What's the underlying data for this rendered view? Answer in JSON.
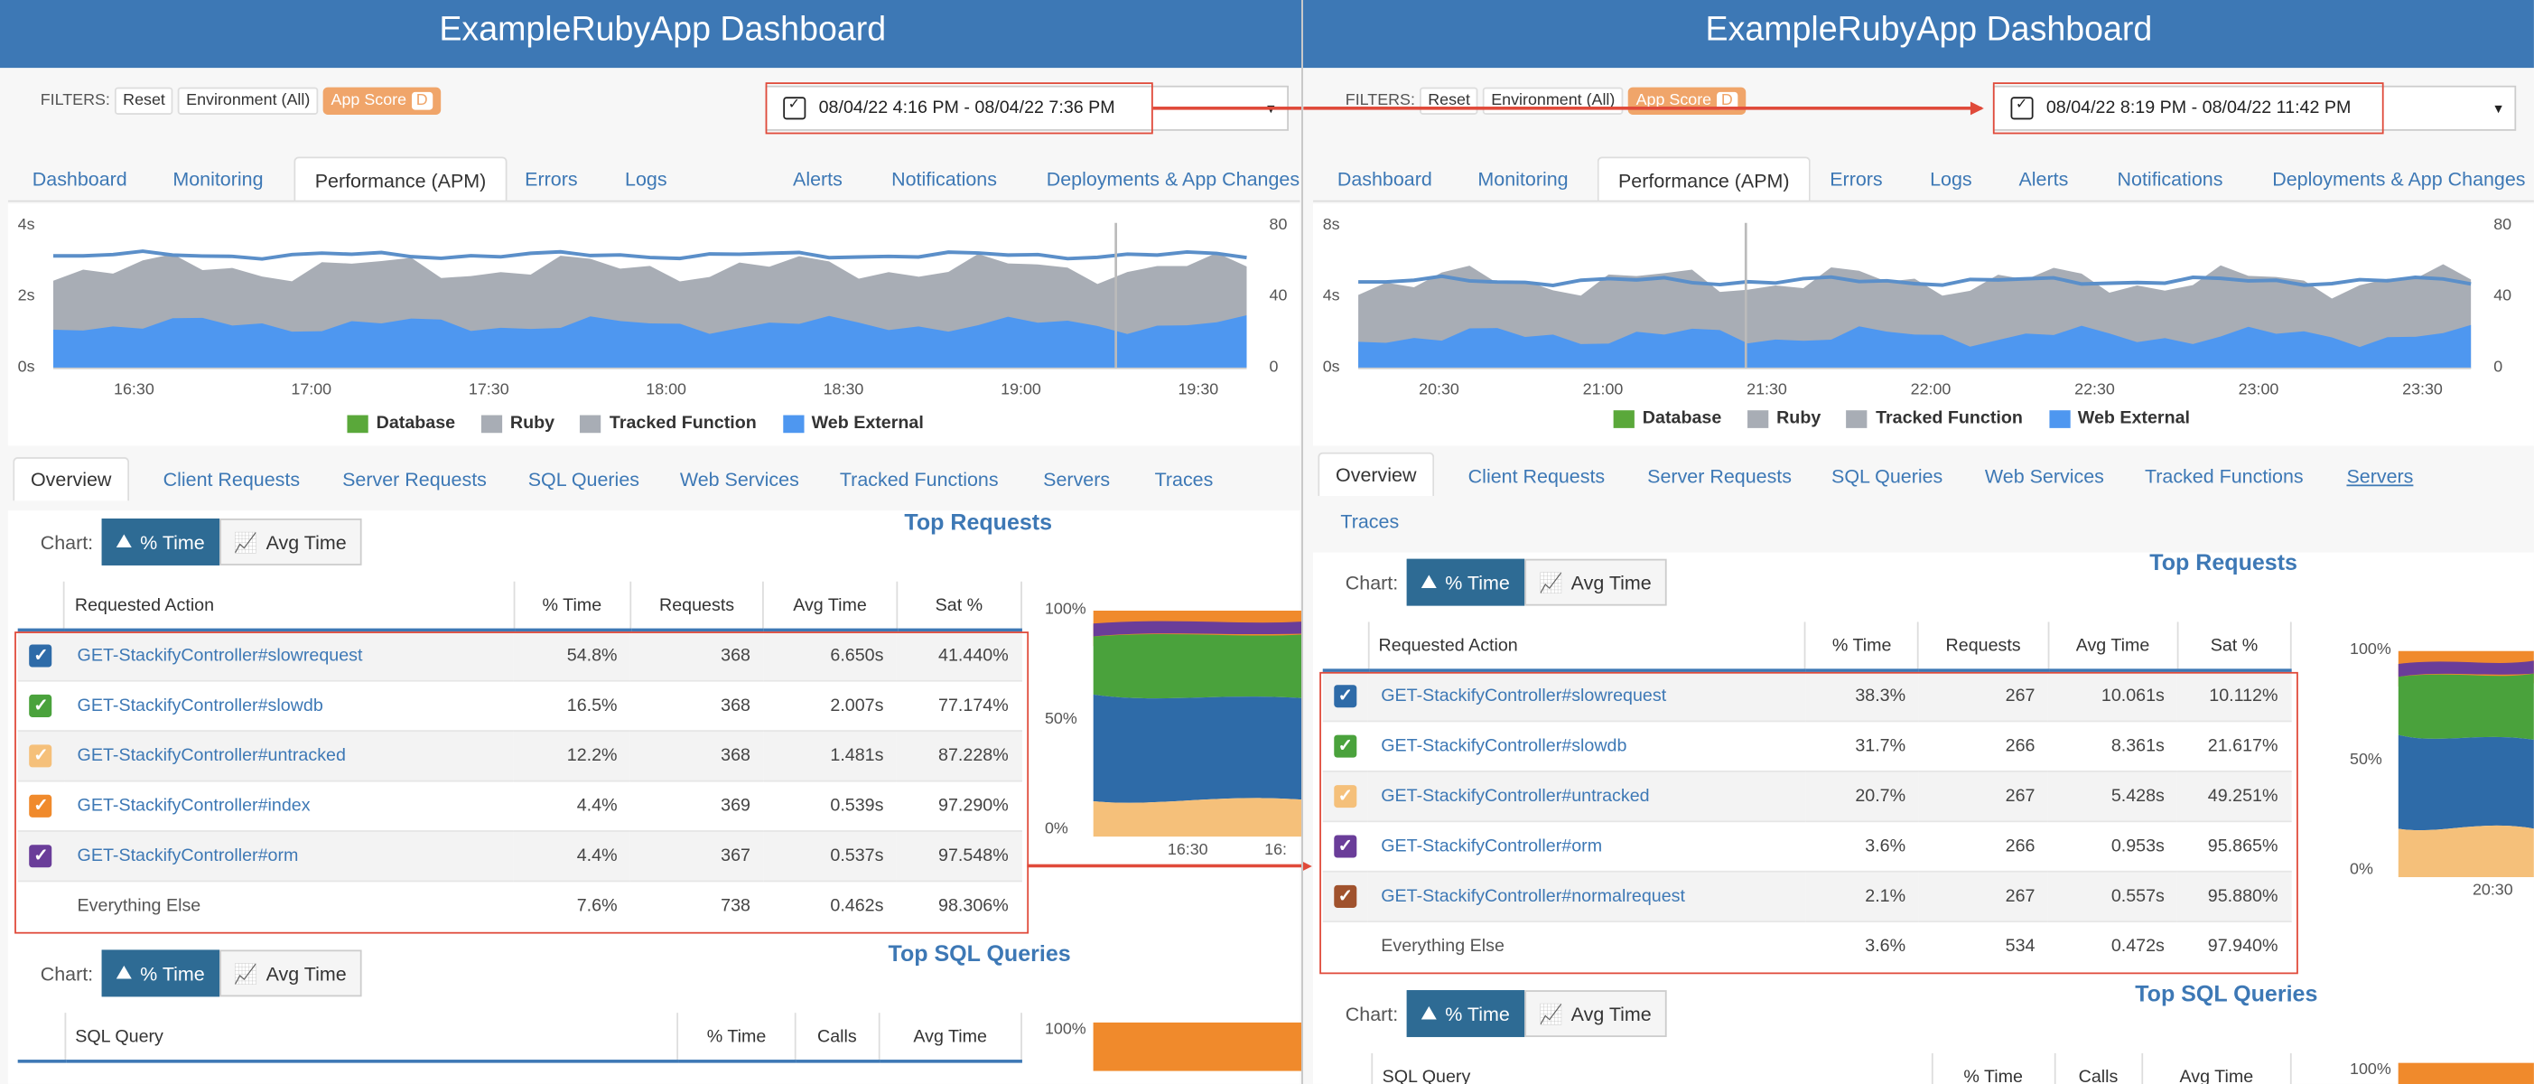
{
  "left": {
    "app_title": "ExampleRubyApp Dashboard",
    "filters": {
      "label": "FILTERS:",
      "reset": "Reset",
      "environment": "Environment (All)",
      "app_score": "App Score",
      "app_score_value": "D"
    },
    "date_range": "08/04/22 4:16 PM - 08/04/22 7:36 PM",
    "nav": [
      "Dashboard",
      "Monitoring",
      "Performance (APM)",
      "Errors",
      "Logs",
      "Alerts",
      "Notifications",
      "Deployments & App Changes"
    ],
    "chart": {
      "y_left_ticks": [
        "4s",
        "2s",
        "0s"
      ],
      "y_right_ticks": [
        "80",
        "40",
        "0"
      ],
      "x_ticks": [
        "16:30",
        "17:00",
        "17:30",
        "18:00",
        "18:30",
        "19:00",
        "19:30"
      ]
    },
    "subtabs": [
      "Overview",
      "Client Requests",
      "Server Requests",
      "SQL Queries",
      "Web Services",
      "Tracked Functions",
      "Servers",
      "Traces"
    ],
    "chart_label": "Chart:",
    "btn_pct": "% Time",
    "btn_avg": "Avg Time",
    "top_requests_title": "Top Requests",
    "columns": [
      "Requested Action",
      "% Time",
      "Requests",
      "Avg Time",
      "Sat %"
    ],
    "rows": [
      {
        "action": "GET-StackifyController#slowrequest",
        "pct": "54.8%",
        "requests": "368",
        "avg": "6.650s",
        "sat": "41.440%",
        "color": "#2e6ba8"
      },
      {
        "action": "GET-StackifyController#slowdb",
        "pct": "16.5%",
        "requests": "368",
        "avg": "2.007s",
        "sat": "77.174%",
        "color": "#4aa23c"
      },
      {
        "action": "GET-StackifyController#untracked",
        "pct": "12.2%",
        "requests": "368",
        "avg": "1.481s",
        "sat": "87.228%",
        "color": "#f5c07a"
      },
      {
        "action": "GET-StackifyController#index",
        "pct": "4.4%",
        "requests": "369",
        "avg": "0.539s",
        "sat": "97.290%",
        "color": "#f08a2c"
      },
      {
        "action": "GET-StackifyController#orm",
        "pct": "4.4%",
        "requests": "367",
        "avg": "0.537s",
        "sat": "97.548%",
        "color": "#6a3d99"
      },
      {
        "action": "Everything Else",
        "pct": "7.6%",
        "requests": "738",
        "avg": "0.462s",
        "sat": "98.306%",
        "color": ""
      }
    ],
    "mini_y": [
      "100%",
      "50%",
      "0%"
    ],
    "mini_x": [
      "16:30",
      "16:"
    ],
    "sql_title": "Top SQL Queries",
    "sql_columns": [
      "SQL Query",
      "% Time",
      "Calls",
      "Avg Time"
    ],
    "sql_mini_y": "100%"
  },
  "right": {
    "app_title": "ExampleRubyApp Dashboard",
    "filters": {
      "label": "FILTERS:",
      "reset": "Reset",
      "environment": "Environment (All)",
      "app_score": "App Score",
      "app_score_value": "D"
    },
    "date_range": "08/04/22 8:19 PM - 08/04/22 11:42 PM",
    "nav": [
      "Dashboard",
      "Monitoring",
      "Performance (APM)",
      "Errors",
      "Logs",
      "Alerts",
      "Notifications",
      "Deployments & App Changes"
    ],
    "chart": {
      "y_left_ticks": [
        "8s",
        "4s",
        "0s"
      ],
      "y_right_ticks": [
        "80",
        "40",
        "0"
      ],
      "x_ticks": [
        "20:30",
        "21:00",
        "21:30",
        "22:00",
        "22:30",
        "23:00",
        "23:30"
      ]
    },
    "subtabs": [
      "Overview",
      "Client Requests",
      "Server Requests",
      "SQL Queries",
      "Web Services",
      "Tracked Functions",
      "Servers",
      "Traces"
    ],
    "chart_label": "Chart:",
    "btn_pct": "% Time",
    "btn_avg": "Avg Time",
    "top_requests_title": "Top Requests",
    "columns": [
      "Requested Action",
      "% Time",
      "Requests",
      "Avg Time",
      "Sat %"
    ],
    "rows": [
      {
        "action": "GET-StackifyController#slowrequest",
        "pct": "38.3%",
        "requests": "267",
        "avg": "10.061s",
        "sat": "10.112%",
        "color": "#2e6ba8"
      },
      {
        "action": "GET-StackifyController#slowdb",
        "pct": "31.7%",
        "requests": "266",
        "avg": "8.361s",
        "sat": "21.617%",
        "color": "#4aa23c"
      },
      {
        "action": "GET-StackifyController#untracked",
        "pct": "20.7%",
        "requests": "267",
        "avg": "5.428s",
        "sat": "49.251%",
        "color": "#f5c07a"
      },
      {
        "action": "GET-StackifyController#orm",
        "pct": "3.6%",
        "requests": "266",
        "avg": "0.953s",
        "sat": "95.865%",
        "color": "#6a3d99"
      },
      {
        "action": "GET-StackifyController#normalrequest",
        "pct": "2.1%",
        "requests": "267",
        "avg": "0.557s",
        "sat": "95.880%",
        "color": "#a0522d"
      },
      {
        "action": "Everything Else",
        "pct": "3.6%",
        "requests": "534",
        "avg": "0.472s",
        "sat": "97.940%",
        "color": ""
      }
    ],
    "mini_y": [
      "100%",
      "50%",
      "0%"
    ],
    "mini_x": [
      "20:30"
    ],
    "sql_title": "Top SQL Queries",
    "sql_columns": [
      "SQL Query",
      "% Time",
      "Calls",
      "Avg Time"
    ],
    "sql_mini_y": "100%"
  },
  "legend": [
    {
      "label": "Database",
      "color": "#5aa83a"
    },
    {
      "label": "Ruby",
      "color": "#a8adb5"
    },
    {
      "label": "Tracked Function",
      "color": "#a8adb5"
    },
    {
      "label": "Web External",
      "color": "#4e97f0"
    }
  ],
  "colors": {
    "header": "#3d78b5",
    "link": "#3d78b5",
    "highlight": "#e04a3a",
    "ruby_area": "#a8adb5",
    "web_area": "#4e97f0"
  }
}
